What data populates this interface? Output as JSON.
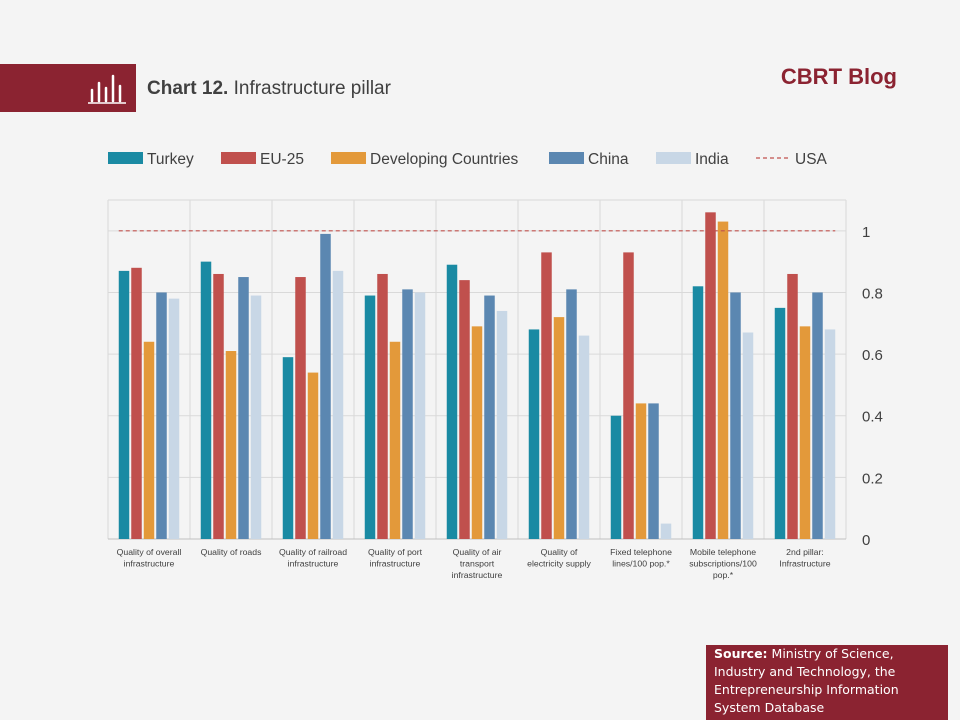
{
  "header": {
    "chart_number": "Chart 12.",
    "chart_title": "Infrastructure pillar",
    "brand": "CBRT Blog"
  },
  "source": {
    "label": "Source:",
    "text": "Ministry of Science, Industry and Technology, the Entrepreneurship Information System Database"
  },
  "colors": {
    "accent": "#8b2331",
    "Turkey": "#1a8aa3",
    "EU-25": "#c0504d",
    "Developing Countries": "#e3993a",
    "China": "#5b87b1",
    "India": "#c8d7e6",
    "USA": "#c0504d"
  },
  "chart_data": {
    "type": "bar",
    "categories": [
      [
        "Quality of overall",
        "infrastructure"
      ],
      [
        "Quality of roads"
      ],
      [
        "Quality of railroad",
        "infrastructure"
      ],
      [
        "Quality of port",
        "infrastructure"
      ],
      [
        "Quality of air",
        "transport",
        "infrastructure"
      ],
      [
        "Quality of",
        "electricity supply"
      ],
      [
        "Fixed telephone",
        "lines/100 pop.*"
      ],
      [
        "Mobile telephone",
        "subscriptions/100",
        "pop.*"
      ],
      [
        "2nd pillar:",
        "Infrastructure"
      ]
    ],
    "series": [
      {
        "name": "Turkey",
        "values": [
          0.87,
          0.9,
          0.59,
          0.79,
          0.89,
          0.68,
          0.4,
          0.82,
          0.75
        ]
      },
      {
        "name": "EU-25",
        "values": [
          0.88,
          0.86,
          0.85,
          0.86,
          0.84,
          0.93,
          0.93,
          1.06,
          0.86
        ]
      },
      {
        "name": "Developing Countries",
        "values": [
          0.64,
          0.61,
          0.54,
          0.64,
          0.69,
          0.72,
          0.44,
          1.03,
          0.69
        ]
      },
      {
        "name": "China",
        "values": [
          0.8,
          0.85,
          0.99,
          0.81,
          0.79,
          0.81,
          0.44,
          0.8,
          0.8
        ]
      },
      {
        "name": "India",
        "values": [
          0.78,
          0.79,
          0.87,
          0.8,
          0.74,
          0.66,
          0.05,
          0.67,
          0.68
        ]
      }
    ],
    "reference_line": {
      "name": "USA",
      "value": 1.0,
      "style": "dashed"
    },
    "ylim": [
      0,
      1.1
    ],
    "yticks": [
      0,
      0.2,
      0.4,
      0.6,
      0.8,
      1
    ],
    "ytick_labels": [
      "0",
      "0.2",
      "0.4",
      "0.6",
      "0.8",
      "1"
    ],
    "y_axis_side": "right",
    "legend_position": "top",
    "grid": true
  }
}
